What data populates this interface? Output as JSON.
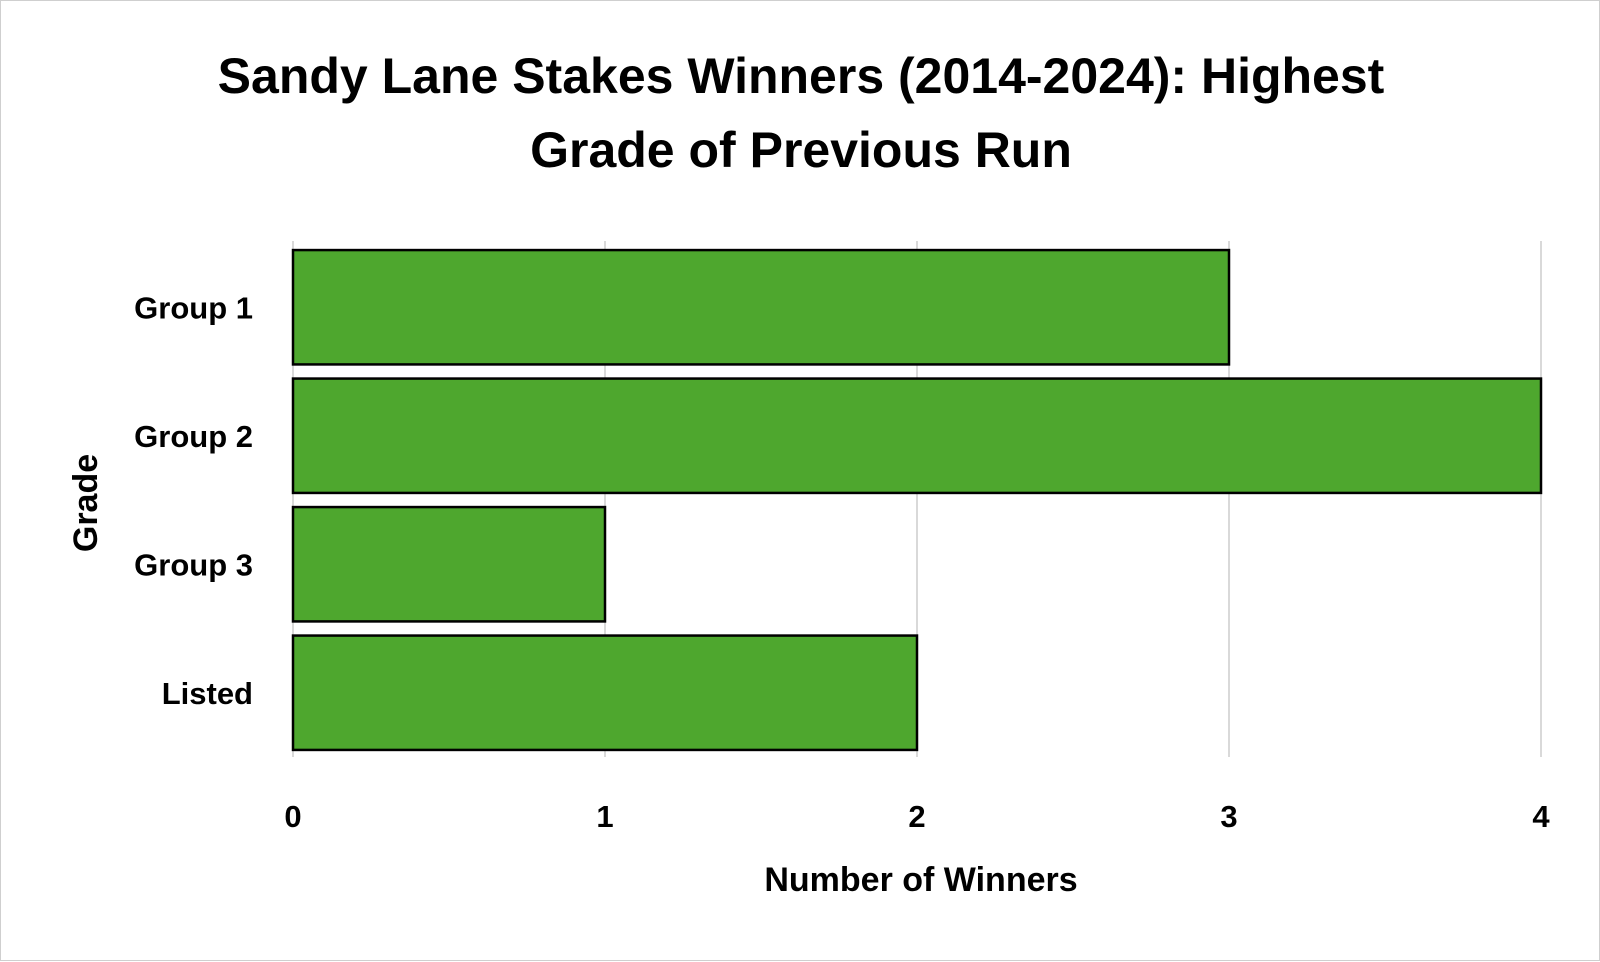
{
  "chart_data": {
    "type": "bar",
    "orientation": "horizontal",
    "title_lines": [
      "Sandy Lane Stakes Winners (2014-2024): Highest",
      "Grade of Previous Run"
    ],
    "xlabel": "Number of Winners",
    "ylabel": "Grade",
    "categories": [
      "Group 1",
      "Group 2",
      "Group 3",
      "Listed"
    ],
    "values": [
      3,
      4,
      1,
      2
    ],
    "xlim": [
      0,
      4
    ],
    "xticks": [
      "0",
      "1",
      "2",
      "3",
      "4"
    ],
    "grid": "vertical",
    "legend": "none",
    "bar_color": "#4EA72E",
    "bar_border_color": "#000000"
  }
}
